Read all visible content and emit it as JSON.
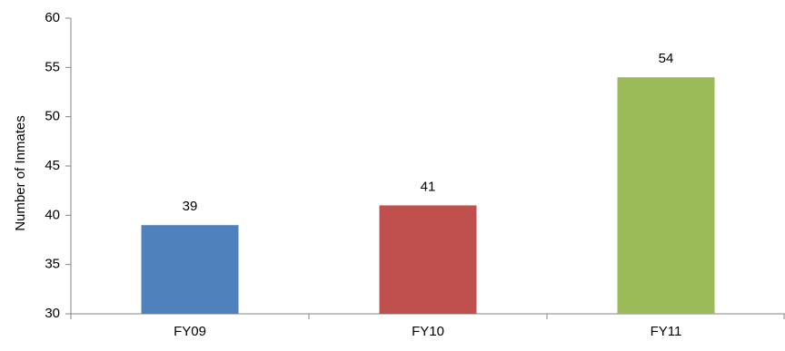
{
  "chart_data": {
    "type": "bar",
    "categories": [
      "FY09",
      "FY10",
      "FY11"
    ],
    "values": [
      39,
      41,
      54
    ],
    "data_labels": [
      "39",
      "41",
      "54"
    ],
    "ylabel": "Number of Inmates",
    "ylim": [
      30,
      60
    ],
    "yticks": [
      30,
      35,
      40,
      45,
      50,
      55,
      60
    ],
    "grid": false,
    "legend": "none",
    "colors": [
      "#4F81BD",
      "#C0504D",
      "#9BBB59"
    ]
  }
}
